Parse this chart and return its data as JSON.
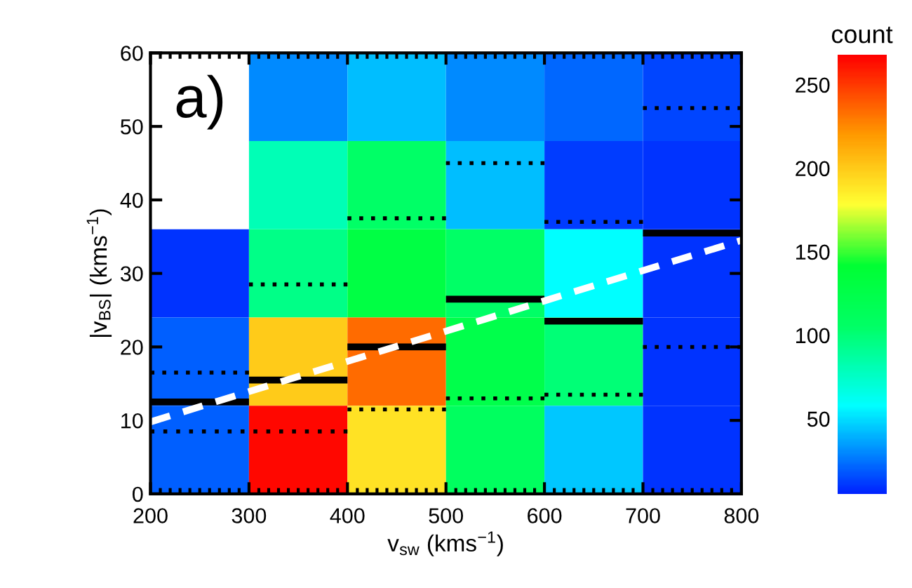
{
  "chart_data": {
    "type": "heatmap",
    "x": [
      250,
      350,
      450,
      550,
      650,
      750
    ],
    "y": [
      54,
      42,
      30,
      18,
      6
    ],
    "cells": [
      [
        null,
        30,
        42,
        30,
        22,
        14
      ],
      [
        null,
        80,
        105,
        42,
        12,
        10
      ],
      [
        10,
        95,
        130,
        105,
        58,
        10
      ],
      [
        20,
        200,
        235,
        125,
        100,
        10
      ],
      [
        20,
        265,
        190,
        110,
        45,
        10
      ]
    ],
    "clim": [
      5,
      268
    ],
    "cticks": [
      50,
      100,
      150,
      200,
      250
    ],
    "clabel": "count",
    "xlim": [
      200,
      800
    ],
    "xticks": [
      200,
      300,
      400,
      500,
      600,
      700,
      800
    ],
    "ylim": [
      0,
      60
    ],
    "yticks": [
      0,
      10,
      20,
      30,
      40,
      50,
      60
    ],
    "xlabel": "v$_{sw}$ (kms$^{−1}$)",
    "ylabel": "|v$_{BS}$| (kms$^{−1}$)",
    "series": [
      {
        "type": "line",
        "color": "#000000",
        "line_style": "solid",
        "x": [
          200,
          300
        ],
        "values": [
          12.5,
          12.5
        ]
      },
      {
        "type": "line",
        "color": "#000000",
        "line_style": "solid",
        "x": [
          300,
          400
        ],
        "values": [
          15.5,
          15.5
        ]
      },
      {
        "type": "line",
        "color": "#000000",
        "line_style": "solid",
        "x": [
          400,
          500
        ],
        "values": [
          20,
          20
        ]
      },
      {
        "type": "line",
        "color": "#000000",
        "line_style": "solid",
        "x": [
          500,
          600
        ],
        "values": [
          26.5,
          26.5
        ]
      },
      {
        "type": "line",
        "color": "#000000",
        "line_style": "solid",
        "x": [
          600,
          700
        ],
        "values": [
          23.5,
          23.5
        ]
      },
      {
        "type": "line",
        "color": "#000000",
        "line_style": "solid",
        "x": [
          700,
          800
        ],
        "values": [
          35.5,
          35.5
        ]
      },
      {
        "type": "line",
        "color": "#000000",
        "line_style": "dotted",
        "x": [
          200,
          400
        ],
        "values": [
          8.5,
          8.5
        ]
      },
      {
        "type": "line",
        "color": "#000000",
        "line_style": "dotted",
        "x": [
          400,
          500
        ],
        "values": [
          11.5,
          11.5
        ]
      },
      {
        "type": "line",
        "color": "#000000",
        "line_style": "dotted",
        "x": [
          500,
          600
        ],
        "values": [
          13,
          13
        ]
      },
      {
        "type": "line",
        "color": "#000000",
        "line_style": "dotted",
        "x": [
          600,
          700
        ],
        "values": [
          13.5,
          13.5
        ]
      },
      {
        "type": "line",
        "color": "#000000",
        "line_style": "dotted",
        "x": [
          700,
          800
        ],
        "values": [
          20,
          20
        ]
      },
      {
        "type": "line",
        "color": "#000000",
        "line_style": "dotted",
        "x": [
          200,
          300
        ],
        "values": [
          16.5,
          16.5
        ]
      },
      {
        "type": "line",
        "color": "#000000",
        "line_style": "dotted",
        "x": [
          300,
          400
        ],
        "values": [
          28.5,
          28.5
        ]
      },
      {
        "type": "line",
        "color": "#000000",
        "line_style": "dotted",
        "x": [
          400,
          500
        ],
        "values": [
          37.5,
          37.5
        ]
      },
      {
        "type": "line",
        "color": "#000000",
        "line_style": "dotted",
        "x": [
          500,
          600
        ],
        "values": [
          45,
          45
        ]
      },
      {
        "type": "line",
        "color": "#000000",
        "line_style": "dotted",
        "x": [
          600,
          700
        ],
        "values": [
          37,
          37
        ]
      },
      {
        "type": "line",
        "color": "#000000",
        "line_style": "dotted",
        "x": [
          700,
          800
        ],
        "values": [
          52.5,
          52.5
        ]
      },
      {
        "type": "line",
        "color": "#ffffff",
        "line_style": "dashed",
        "x": [
          200,
          800
        ],
        "values": [
          9.8,
          34.5
        ]
      }
    ],
    "annotations": [
      "a)"
    ],
    "grid": false
  }
}
